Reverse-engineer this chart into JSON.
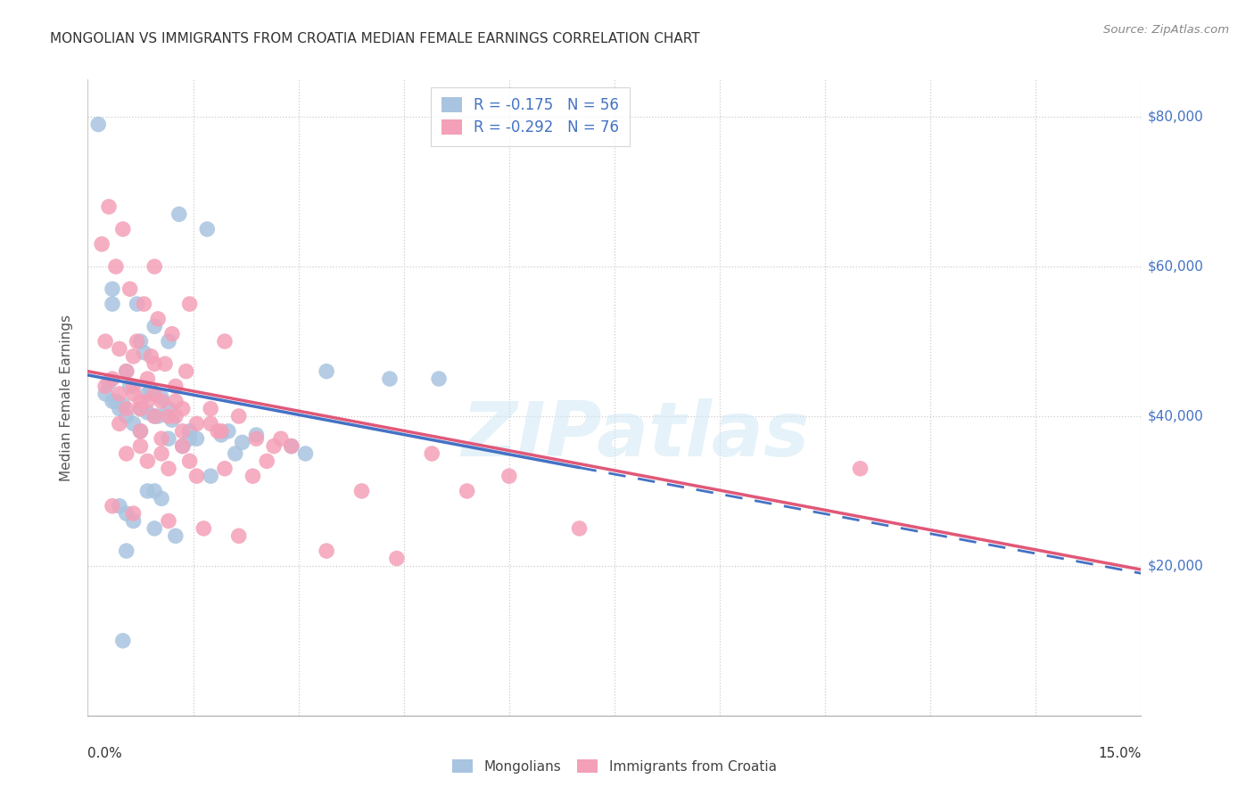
{
  "title": "MONGOLIAN VS IMMIGRANTS FROM CROATIA MEDIAN FEMALE EARNINGS CORRELATION CHART",
  "source": "Source: ZipAtlas.com",
  "ylabel": "Median Female Earnings",
  "y_ticks": [
    20000,
    40000,
    60000,
    80000
  ],
  "y_tick_labels": [
    "$20,000",
    "$40,000",
    "$60,000",
    "$80,000"
  ],
  "x_range": [
    0.0,
    15.0
  ],
  "y_range": [
    0,
    85000
  ],
  "mongolian_color": "#a8c4e0",
  "croatia_color": "#f4a0b8",
  "mongolian_line_color": "#4472c4",
  "croatia_line_color": "#e05878",
  "legend_label1": "R = -0.175   N = 56",
  "legend_label2": "R = -0.292   N = 76",
  "bottom_label1": "Mongolians",
  "bottom_label2": "Immigrants from Croatia",
  "watermark": "ZIPatlas",
  "blue_line_x0": 0.0,
  "blue_line_y0": 45500,
  "blue_line_x1": 15.0,
  "blue_line_y1": 19000,
  "blue_solid_end": 7.0,
  "pink_line_x0": 0.0,
  "pink_line_y0": 46000,
  "pink_line_x1": 15.0,
  "pink_line_y1": 19500,
  "pink_solid_end": 15.0,
  "mon_x": [
    0.15,
    1.3,
    1.7,
    0.35,
    0.7,
    0.95,
    1.15,
    0.8,
    0.55,
    0.3,
    0.6,
    0.9,
    1.05,
    0.4,
    0.5,
    0.75,
    0.85,
    0.95,
    1.0,
    1.2,
    1.45,
    1.9,
    2.2,
    3.4,
    5.0,
    0.25,
    0.35,
    0.45,
    0.55,
    0.65,
    0.75,
    1.15,
    1.35,
    1.55,
    2.0,
    2.4,
    2.9,
    1.75,
    0.85,
    1.05,
    0.45,
    0.55,
    0.65,
    0.95,
    1.25,
    4.3,
    0.35,
    0.75,
    1.45,
    2.1,
    0.95,
    0.55,
    3.1,
    0.5,
    0.85,
    1.15
  ],
  "mon_y": [
    79000,
    67000,
    65000,
    57000,
    55000,
    52000,
    50000,
    48500,
    46000,
    44500,
    44000,
    43500,
    42500,
    42000,
    41500,
    41000,
    40500,
    40000,
    40000,
    39500,
    38000,
    37500,
    36500,
    46000,
    45000,
    43000,
    42000,
    41000,
    40000,
    39000,
    38000,
    37000,
    36000,
    37000,
    38000,
    37500,
    36000,
    32000,
    30000,
    29000,
    28000,
    27000,
    26000,
    25000,
    24000,
    45000,
    55000,
    50000,
    37000,
    35000,
    30000,
    22000,
    35000,
    10000,
    43000,
    41000
  ],
  "cro_x": [
    0.2,
    0.4,
    0.6,
    0.8,
    1.0,
    1.2,
    0.3,
    0.5,
    0.7,
    0.9,
    1.1,
    1.4,
    0.25,
    0.45,
    0.65,
    0.85,
    1.05,
    1.35,
    0.55,
    0.75,
    0.95,
    1.15,
    1.55,
    1.9,
    2.4,
    2.9,
    5.4,
    11.0,
    0.35,
    0.65,
    0.95,
    1.25,
    1.75,
    2.15,
    0.45,
    0.75,
    1.05,
    1.35,
    0.55,
    0.85,
    1.15,
    1.55,
    2.75,
    4.9,
    0.25,
    0.45,
    0.65,
    0.95,
    1.35,
    0.75,
    1.05,
    1.45,
    1.95,
    2.35,
    0.55,
    0.85,
    1.25,
    1.75,
    2.55,
    6.0,
    0.35,
    0.65,
    1.15,
    1.65,
    2.15,
    3.4,
    4.4,
    0.95,
    1.45,
    1.95,
    0.75,
    1.25,
    1.85,
    2.65,
    3.9,
    7.0
  ],
  "cro_y": [
    63000,
    60000,
    57000,
    55000,
    53000,
    51000,
    68000,
    65000,
    50000,
    48000,
    47000,
    46000,
    44000,
    43000,
    43000,
    42000,
    42000,
    41000,
    41000,
    41000,
    40000,
    40000,
    39000,
    38000,
    37000,
    36000,
    30000,
    33000,
    45000,
    44000,
    43000,
    42000,
    41000,
    40000,
    39000,
    38000,
    37000,
    36000,
    35000,
    34000,
    33000,
    32000,
    37000,
    35000,
    50000,
    49000,
    48000,
    47000,
    38000,
    36000,
    35000,
    34000,
    33000,
    32000,
    46000,
    45000,
    44000,
    39000,
    34000,
    32000,
    28000,
    27000,
    26000,
    25000,
    24000,
    22000,
    21000,
    60000,
    55000,
    50000,
    42000,
    40000,
    38000,
    36000,
    30000,
    25000
  ]
}
